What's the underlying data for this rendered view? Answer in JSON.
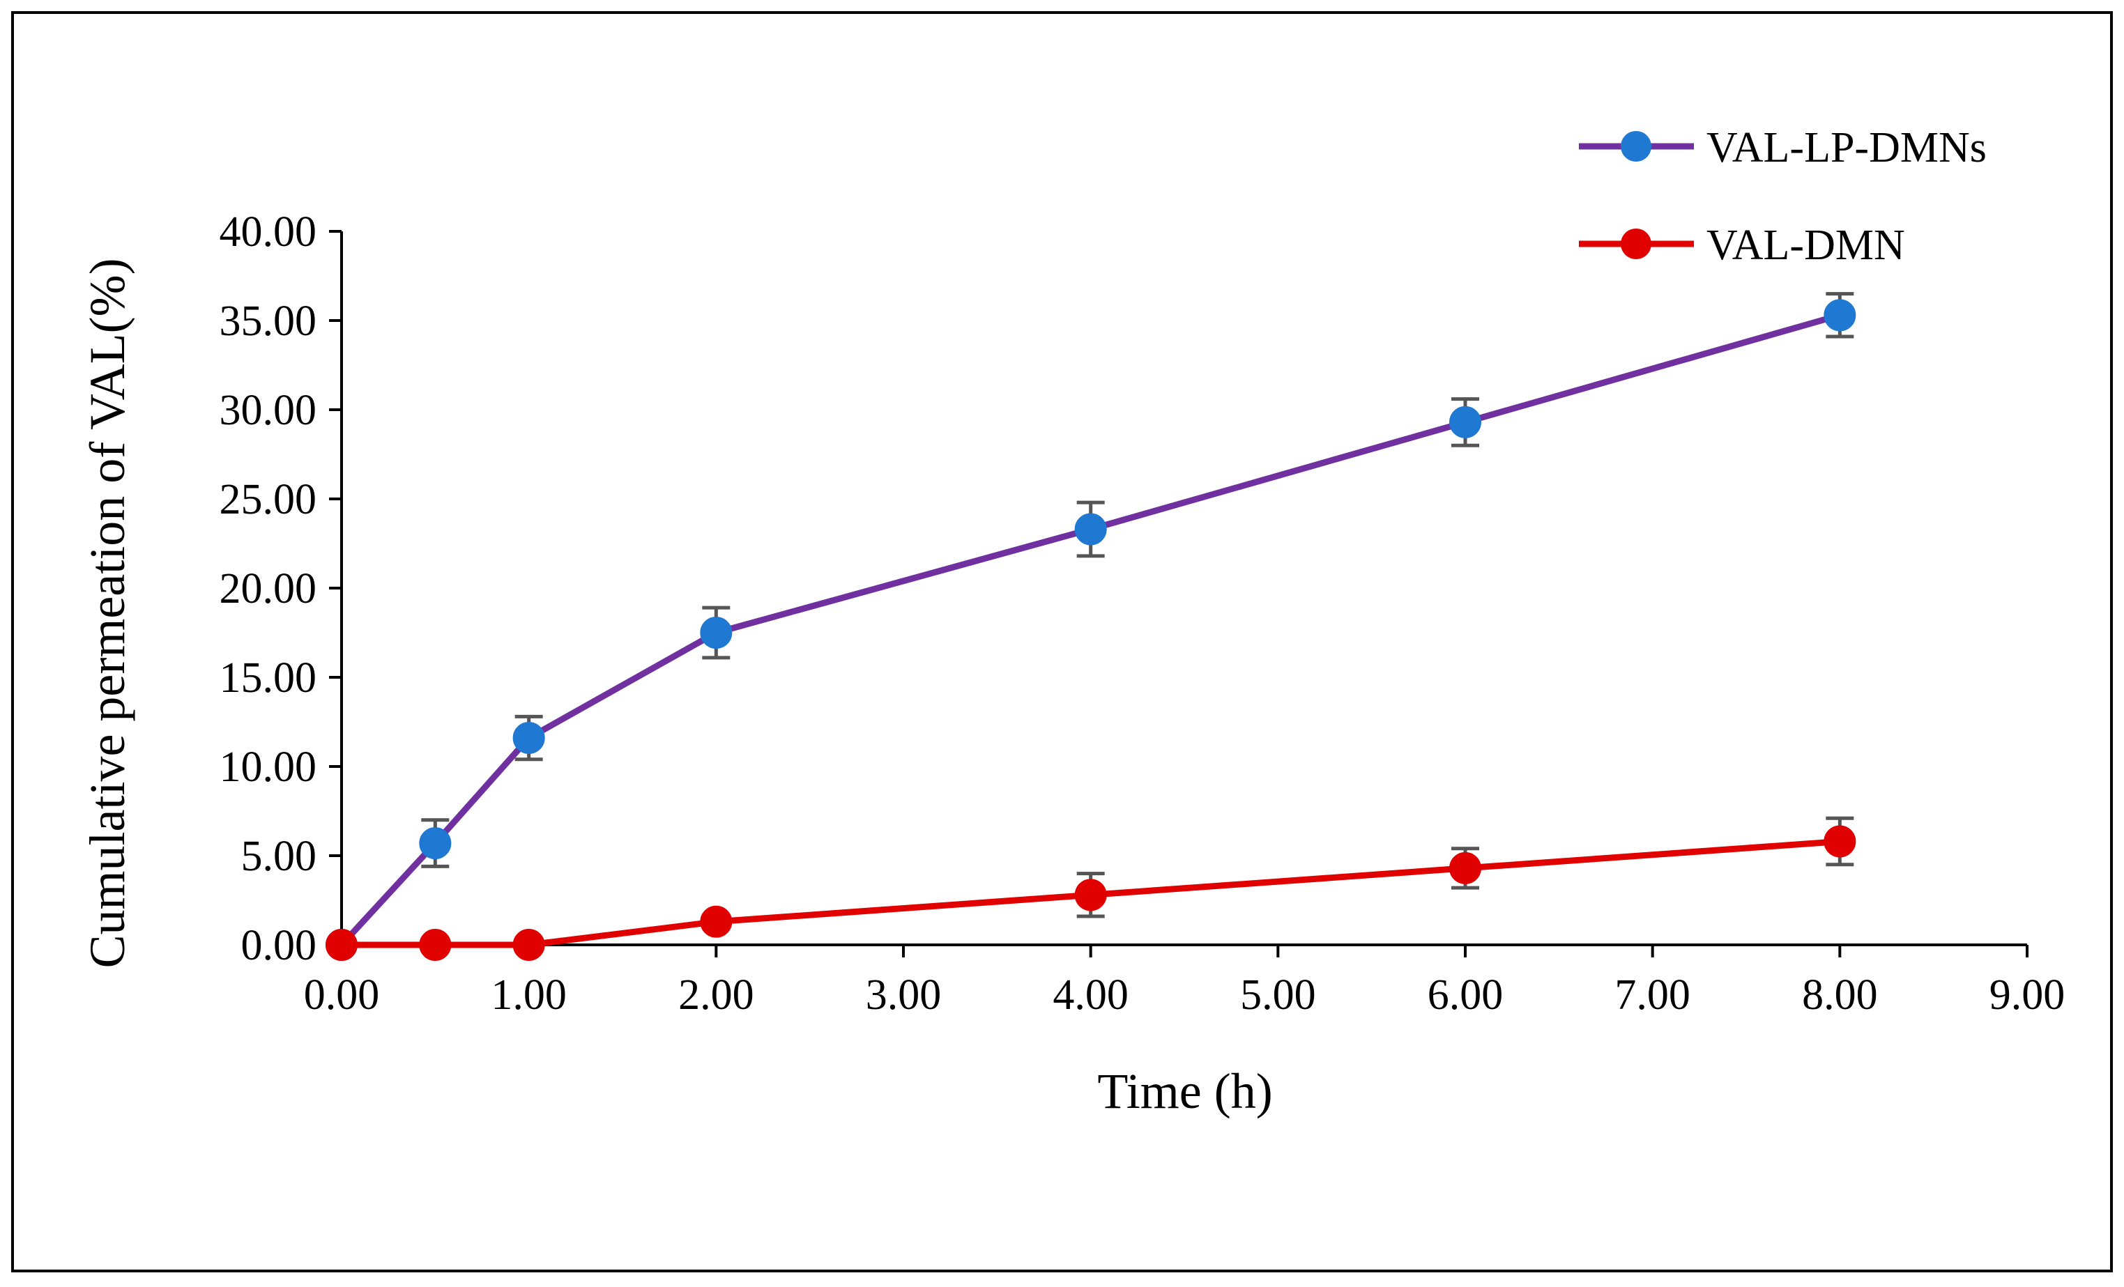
{
  "chart_data": {
    "type": "line",
    "title": "",
    "xlabel": "Time (h)",
    "ylabel": "Cumulative  permeation of VAL(%)",
    "xlim": [
      0,
      9
    ],
    "ylim": [
      0,
      40
    ],
    "x_ticks": [
      "0.00",
      "1.00",
      "2.00",
      "3.00",
      "4.00",
      "5.00",
      "6.00",
      "7.00",
      "8.00",
      "9.00"
    ],
    "y_ticks": [
      "0.00",
      "5.00",
      "10.00",
      "15.00",
      "20.00",
      "25.00",
      "30.00",
      "35.00",
      "40.00"
    ],
    "x": [
      0,
      0.5,
      1,
      2,
      4,
      6,
      8
    ],
    "grid": false,
    "legend_position": "top-right",
    "series": [
      {
        "name": "VAL-LP-DMNs",
        "line_color": "#7030a0",
        "marker_color": "#1f78d1",
        "values": [
          0,
          5.7,
          11.6,
          17.5,
          23.3,
          29.3,
          35.3
        ],
        "errors": [
          0,
          1.3,
          1.2,
          1.4,
          1.5,
          1.3,
          1.2
        ]
      },
      {
        "name": "VAL-DMN",
        "line_color": "#e00000",
        "marker_color": "#e00000",
        "values": [
          0,
          0,
          0,
          1.3,
          2.8,
          4.3,
          5.8
        ],
        "errors": [
          0,
          0,
          0,
          0,
          1.2,
          1.1,
          1.3
        ]
      }
    ],
    "error_bar_color": "#555555"
  }
}
